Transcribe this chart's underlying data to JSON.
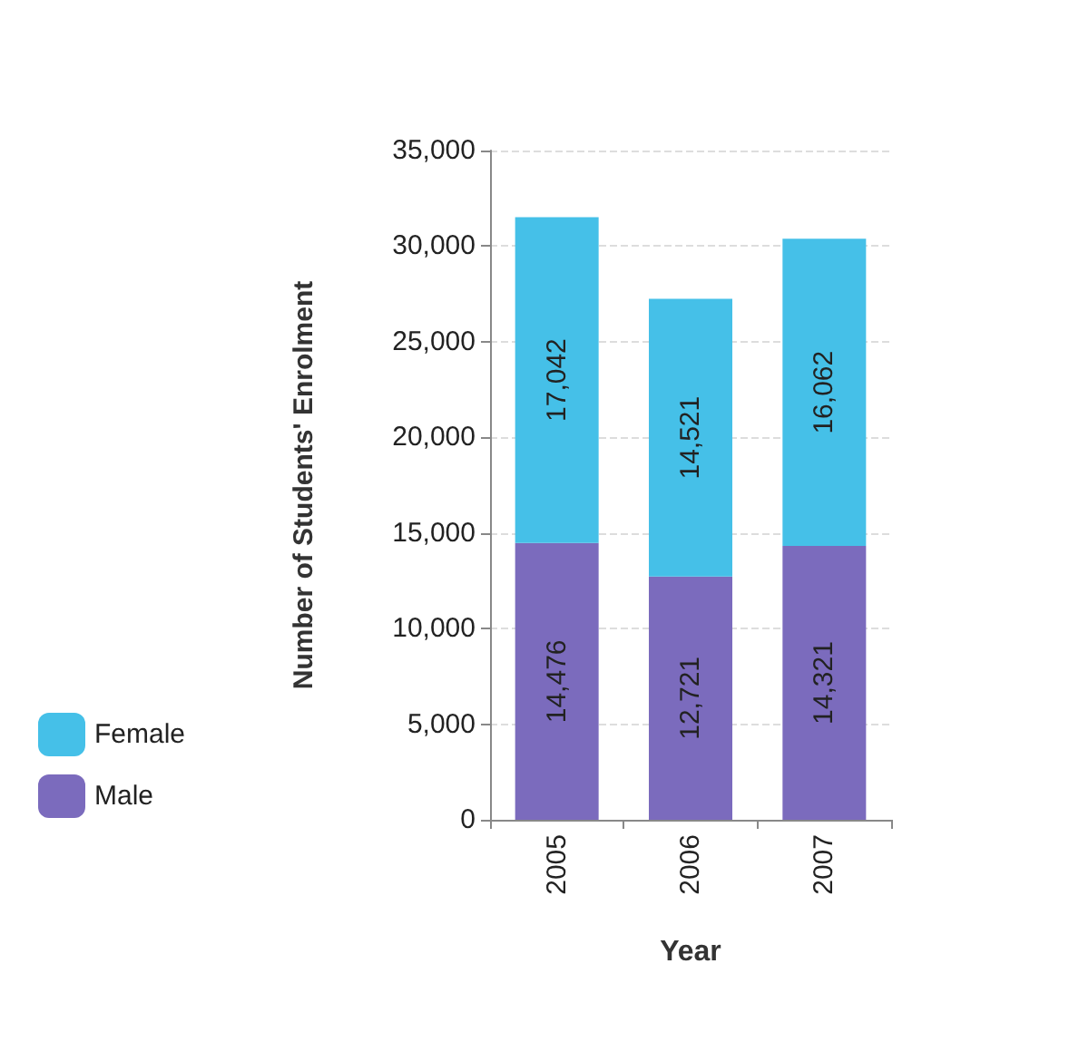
{
  "chart_data": {
    "type": "bar",
    "stacked": true,
    "xlabel": "Year",
    "ylabel": "Number of Students' Enrolment",
    "categories": [
      "2005",
      "2006",
      "2007"
    ],
    "series": [
      {
        "name": "Male",
        "color": "#7b6bbd",
        "values": [
          14476,
          12721,
          14321
        ],
        "value_labels": [
          "14,476",
          "12,721",
          "14,321"
        ]
      },
      {
        "name": "Female",
        "color": "#45c0e8",
        "values": [
          17042,
          14521,
          16062
        ],
        "value_labels": [
          "17,042",
          "14,521",
          "16,062"
        ]
      }
    ],
    "ylim": [
      0,
      35000
    ],
    "yticks": [
      {
        "value": 0,
        "label": "0"
      },
      {
        "value": 5000,
        "label": "5,000"
      },
      {
        "value": 10000,
        "label": "10,000"
      },
      {
        "value": 15000,
        "label": "15,000"
      },
      {
        "value": 20000,
        "label": "20,000"
      },
      {
        "value": 25000,
        "label": "25,000"
      },
      {
        "value": 30000,
        "label": "30,000"
      },
      {
        "value": 35000,
        "label": "35,000"
      }
    ],
    "grid": "y",
    "legend": "left"
  }
}
